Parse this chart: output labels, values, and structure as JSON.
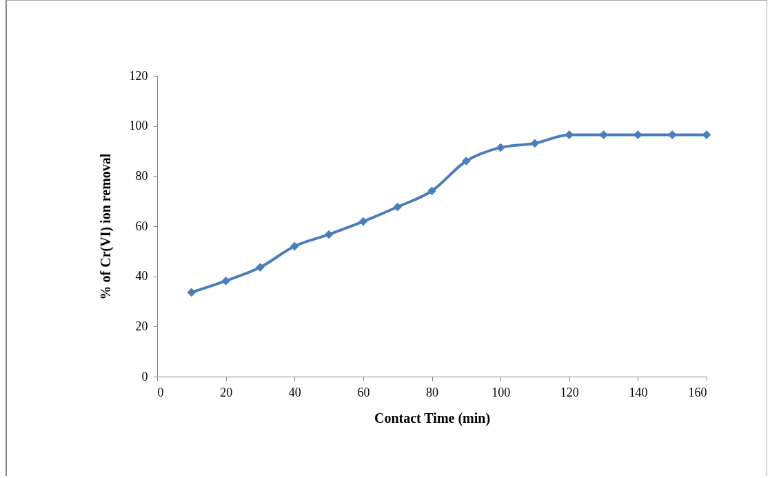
{
  "chart_data": {
    "type": "line",
    "xlabel": "Contact Time (min)",
    "ylabel": "% of Cr(VI) ion removal",
    "x": [
      10,
      20,
      30,
      40,
      50,
      60,
      70,
      80,
      90,
      100,
      110,
      120,
      130,
      140,
      150,
      160
    ],
    "series": [
      {
        "color": "#4a7ebb",
        "values": [
          33.6,
          38.2,
          43.6,
          52.0,
          56.7,
          61.9,
          67.7,
          74.1,
          86.0,
          91.4,
          93.1,
          96.5,
          96.5,
          96.5,
          96.5,
          96.5
        ]
      }
    ],
    "xlim": [
      0,
      160
    ],
    "xticks": [
      0,
      20,
      40,
      60,
      80,
      100,
      120,
      140,
      160
    ],
    "ylim": [
      0,
      120
    ],
    "yticks": [
      0,
      20,
      40,
      60,
      80,
      100,
      120
    ],
    "grid": false,
    "marker": "diamond",
    "line_style": "solid"
  }
}
